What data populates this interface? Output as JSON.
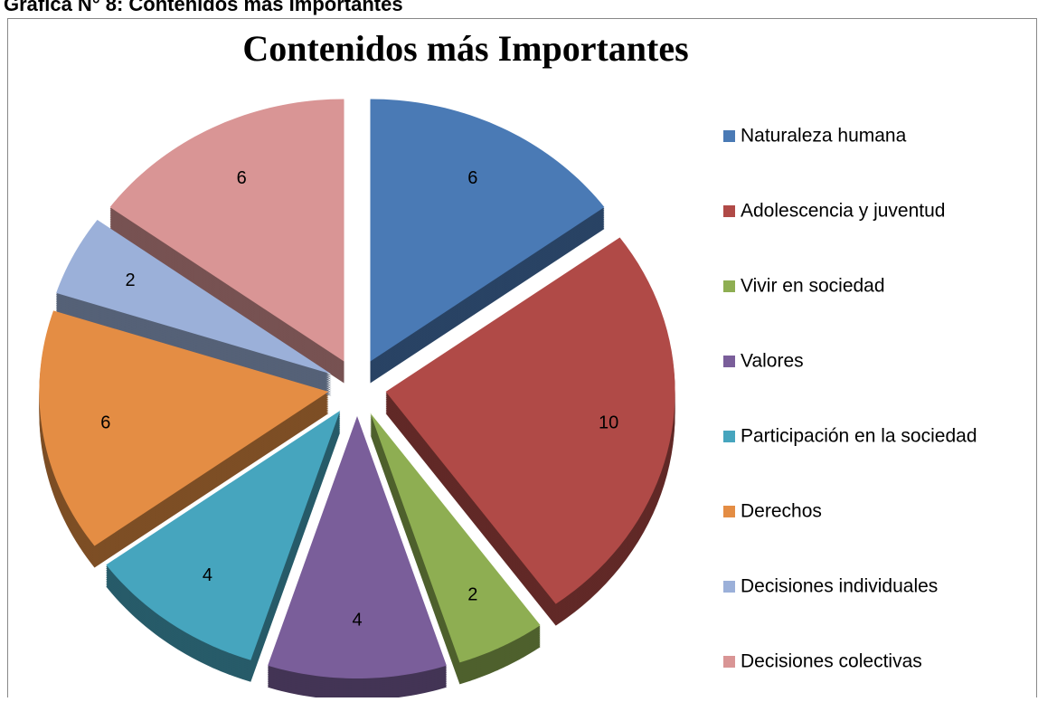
{
  "chart_data": {
    "type": "pie",
    "caption": "Gráfica N° 8: Contenidos más Importantes",
    "title": "Contenidos más Importantes",
    "categories": [
      "Naturaleza humana",
      "Adolescencia y juventud",
      "Vivir en sociedad",
      "Valores",
      "Participación en la sociedad",
      "Derechos",
      "Decisiones individuales",
      "Decisiones colectivas"
    ],
    "values": [
      6,
      10,
      2,
      4,
      4,
      6,
      2,
      6
    ],
    "colors": [
      "#4a7ab5",
      "#b04a47",
      "#8eae52",
      "#7a5e9a",
      "#46a5be",
      "#e48d44",
      "#9bb0d9",
      "#d99595"
    ],
    "legend": "right"
  }
}
